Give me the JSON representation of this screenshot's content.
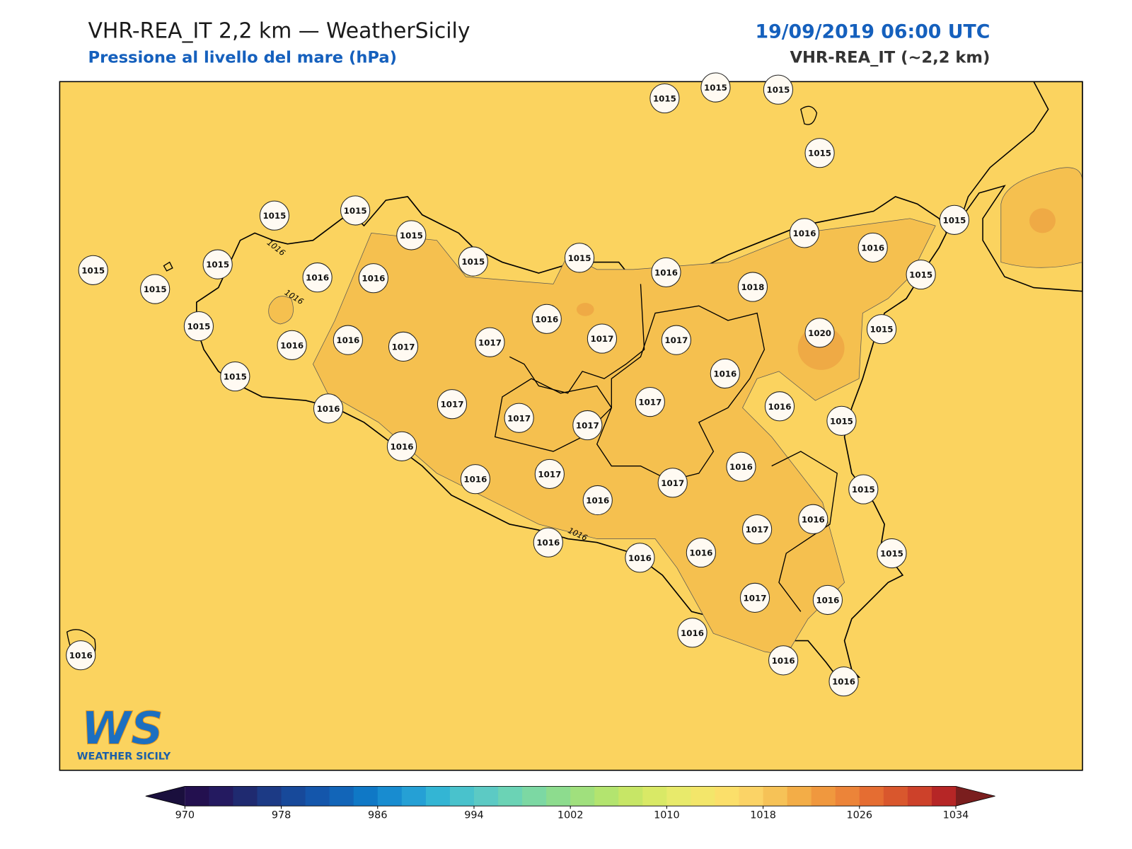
{
  "header": {
    "title": "VHR-REA_IT 2,2 km — WeatherSicily",
    "subtitle": "Pressione al livello del mare (hPa)",
    "datetime": "19/09/2019 06:00 UTC",
    "model": "VHR-REA_IT (~2,2 km)"
  },
  "stations": [
    1015,
    1015,
    1015,
    1015,
    1015,
    1016,
    1016,
    1015,
    1015,
    1015,
    1015,
    1015,
    1015,
    1016,
    1018,
    1015,
    1015,
    1015,
    1016,
    1016,
    1015,
    1016,
    1016,
    1017,
    1017,
    1016,
    1017,
    1017,
    1020,
    1015,
    1015,
    1016,
    1016,
    1017,
    1017,
    1017,
    1017,
    1016,
    1015,
    1016,
    1016,
    1017,
    1016,
    1017,
    1016,
    1015,
    1016,
    1017,
    1016,
    1016,
    1016,
    1015,
    1017,
    1016,
    1016,
    1016,
    1016,
    1016
  ],
  "contour_labels": [
    "1016",
    "1016",
    "1016"
  ],
  "logo": {
    "mark": "WS",
    "text": "WEATHER SICILY"
  },
  "colorbar": {
    "ticks": [
      970,
      978,
      986,
      994,
      1002,
      1010,
      1018,
      1026,
      1034
    ],
    "colors": [
      "#23104f",
      "#241a60",
      "#1f2a70",
      "#1c3a85",
      "#17499a",
      "#1456ab",
      "#1265b8",
      "#0f78c6",
      "#188cd0",
      "#25a0d5",
      "#33b5d4",
      "#49c2cc",
      "#5ccac4",
      "#6bd3b5",
      "#7cd8a3",
      "#8ddc8e",
      "#a0e07d",
      "#b3e46f",
      "#c7e666",
      "#d9e966",
      "#e8ea6b",
      "#f3e66a",
      "#fbdf6a",
      "#fbd366",
      "#f6c257",
      "#f3ad47",
      "#f0983e",
      "#ec8439",
      "#e56d32",
      "#d9572d",
      "#cd412a",
      "#b62626"
    ],
    "under_color": "#1a0f3d",
    "over_color": "#7a1e1e"
  }
}
